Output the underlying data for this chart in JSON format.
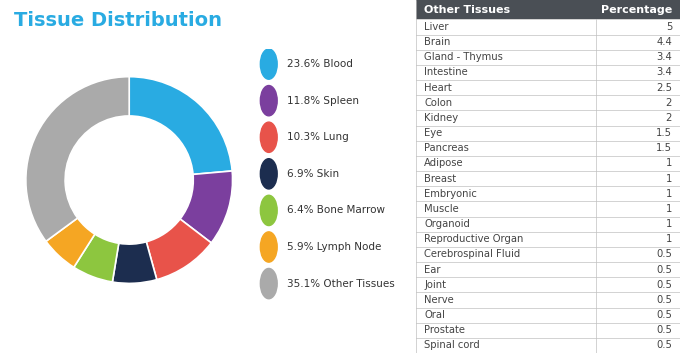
{
  "title": "Tissue Distribution",
  "title_color": "#29ABE2",
  "pie_labels": [
    "Blood",
    "Spleen",
    "Lung",
    "Skin",
    "Bone Marrow",
    "Lymph Node",
    "Other Tissues"
  ],
  "pie_values": [
    23.6,
    11.8,
    10.3,
    6.9,
    6.4,
    5.9,
    35.1
  ],
  "pie_colors": [
    "#29ABE2",
    "#7B3F9E",
    "#E8534A",
    "#1C2D4F",
    "#8DC63F",
    "#F5A623",
    "#AAAAAA"
  ],
  "legend_labels": [
    "23.6% Blood",
    "11.8% Spleen",
    "10.3% Lung",
    "6.9% Skin",
    "6.4% Bone Marrow",
    "5.9% Lymph Node",
    "35.1% Other Tissues"
  ],
  "table_header": [
    "Other Tissues",
    "Percentage"
  ],
  "table_rows": [
    [
      "Liver",
      "5"
    ],
    [
      "Brain",
      "4.4"
    ],
    [
      "Gland - Thymus",
      "3.4"
    ],
    [
      "Intestine",
      "3.4"
    ],
    [
      "Heart",
      "2.5"
    ],
    [
      "Colon",
      "2"
    ],
    [
      "Kidney",
      "2"
    ],
    [
      "Eye",
      "1.5"
    ],
    [
      "Pancreas",
      "1.5"
    ],
    [
      "Adipose",
      "1"
    ],
    [
      "Breast",
      "1"
    ],
    [
      "Embryonic",
      "1"
    ],
    [
      "Muscle",
      "1"
    ],
    [
      "Organoid",
      "1"
    ],
    [
      "Reproductive Organ",
      "1"
    ],
    [
      "Cerebrospinal Fluid",
      "0.5"
    ],
    [
      "Ear",
      "0.5"
    ],
    [
      "Joint",
      "0.5"
    ],
    [
      "Nerve",
      "0.5"
    ],
    [
      "Oral",
      "0.5"
    ],
    [
      "Prostate",
      "0.5"
    ],
    [
      "Spinal cord",
      "0.5"
    ]
  ],
  "legend_bg_color": "#EFEFEF",
  "table_header_bg": "#4A4F55",
  "table_header_color": "#FFFFFF",
  "table_line_color": "#C0C0C0",
  "table_font_size": 7.2,
  "donut_width": 0.38
}
